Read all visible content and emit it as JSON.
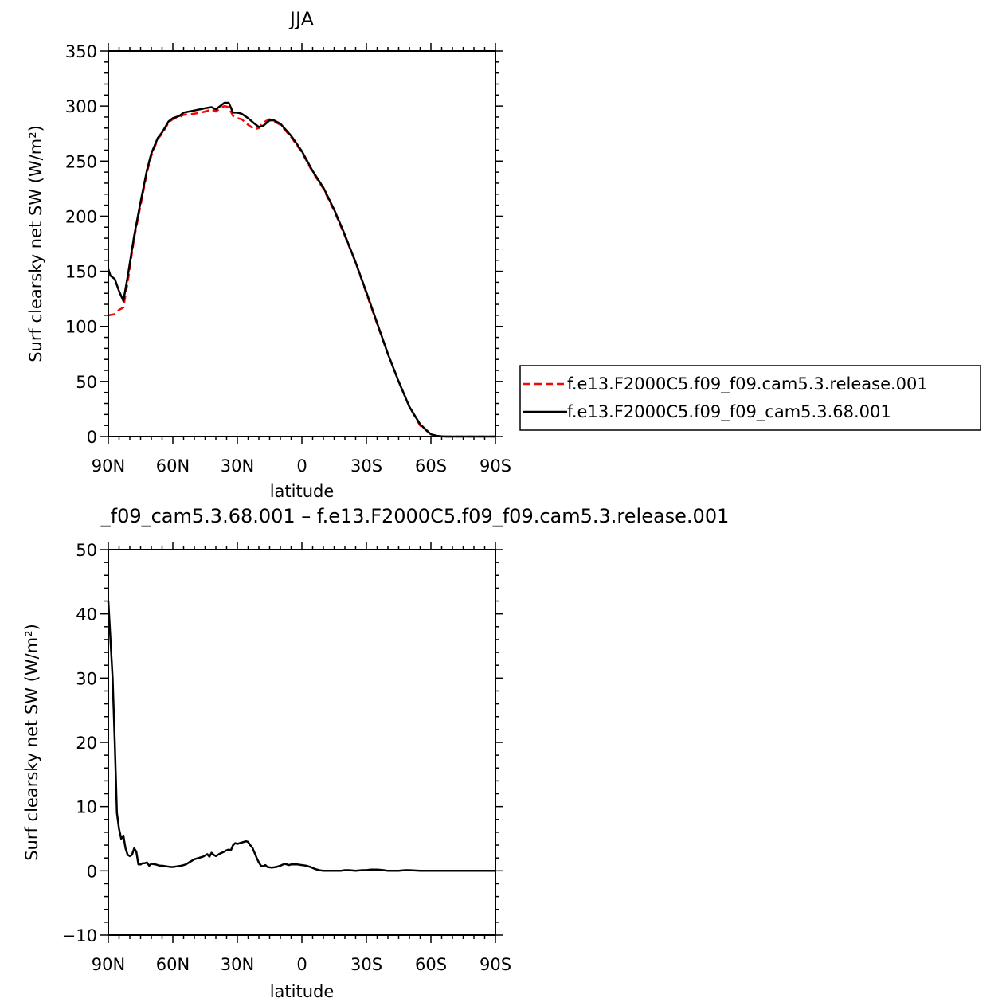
{
  "chart_data": [
    {
      "type": "line",
      "title": "JJA",
      "xlabel": "latitude",
      "ylabel": "Surf clearsky net SW (W/m²)",
      "xlim": [
        90,
        -90
      ],
      "ylim": [
        0,
        350
      ],
      "xticks": [
        {
          "value": 90,
          "label": "90N"
        },
        {
          "value": 60,
          "label": "60N"
        },
        {
          "value": 30,
          "label": "30N"
        },
        {
          "value": 0,
          "label": "0"
        },
        {
          "value": -30,
          "label": "30S"
        },
        {
          "value": -60,
          "label": "60S"
        },
        {
          "value": -90,
          "label": "90S"
        }
      ],
      "yticks": [
        0,
        50,
        100,
        150,
        200,
        250,
        300,
        350
      ],
      "legend_position": "right",
      "series": [
        {
          "name": "f.e13.F2000C5.f09_f09.cam5.3.release.001",
          "color": "#ff0000",
          "dash": "dashed",
          "x": [
            90,
            87,
            85,
            83,
            81,
            78,
            75,
            72,
            70,
            67,
            65,
            62,
            60,
            57,
            55,
            50,
            45,
            42,
            40,
            38,
            36,
            34,
            32,
            30,
            28,
            25,
            22,
            20,
            18,
            15,
            13,
            10,
            5,
            0,
            -5,
            -10,
            -15,
            -20,
            -25,
            -30,
            -35,
            -40,
            -45,
            -50,
            -55,
            -60,
            -62,
            -63,
            -65,
            -67,
            -70,
            -75,
            -80,
            -85,
            -90
          ],
          "y": [
            110,
            111,
            115,
            117,
            140,
            180,
            210,
            240,
            255,
            270,
            275,
            285,
            288,
            290,
            292,
            293,
            295,
            297,
            295,
            298,
            300,
            299,
            291,
            289,
            288,
            283,
            279,
            280,
            285,
            288,
            286,
            283,
            272,
            258,
            240,
            225,
            205,
            182,
            158,
            130,
            102,
            75,
            50,
            27,
            10,
            2,
            1,
            0.5,
            0.2,
            0,
            0,
            0,
            0,
            0,
            0
          ]
        },
        {
          "name": "f.e13.F2000C5.f09_f09_cam5.3.68.001",
          "color": "#000000",
          "dash": "solid",
          "x": [
            90,
            89,
            87,
            85,
            83,
            81,
            78,
            75,
            72,
            70,
            67,
            65,
            62,
            60,
            57,
            55,
            50,
            45,
            42,
            40,
            38,
            36,
            34,
            32,
            30,
            28,
            25,
            22,
            20,
            18,
            15,
            13,
            10,
            5,
            0,
            -5,
            -10,
            -15,
            -20,
            -25,
            -30,
            -35,
            -40,
            -45,
            -50,
            -55,
            -60,
            -62,
            -63,
            -65,
            -67,
            -70,
            -75,
            -80,
            -85,
            -90
          ],
          "y": [
            152,
            146,
            143,
            132,
            123,
            145,
            182,
            213,
            242,
            257,
            271,
            276,
            286,
            289,
            291,
            294,
            296,
            298,
            299,
            297,
            300,
            303,
            303,
            294,
            294,
            293,
            289,
            284,
            281,
            282,
            287,
            287,
            284,
            273,
            259,
            241,
            226,
            206,
            183,
            158,
            131,
            103,
            75,
            50,
            27,
            11,
            2,
            1,
            0.5,
            0.2,
            0,
            0,
            0,
            0,
            0,
            0
          ]
        }
      ]
    },
    {
      "type": "line",
      "title": "_f09_cam5.3.68.001 – f.e13.F2000C5.f09_f09.cam5.3.release.001",
      "xlabel": "latitude",
      "ylabel": "Surf clearsky net SW (W/m²)",
      "xlim": [
        90,
        -90
      ],
      "ylim": [
        -10,
        50
      ],
      "xticks": [
        {
          "value": 90,
          "label": "90N"
        },
        {
          "value": 60,
          "label": "60N"
        },
        {
          "value": 30,
          "label": "30N"
        },
        {
          "value": 0,
          "label": "0"
        },
        {
          "value": -30,
          "label": "30S"
        },
        {
          "value": -60,
          "label": "60S"
        },
        {
          "value": -90,
          "label": "90S"
        }
      ],
      "yticks": [
        -10,
        0,
        10,
        20,
        30,
        40,
        50
      ],
      "series": [
        {
          "color": "#000000",
          "dash": "solid",
          "x": [
            90,
            89,
            88,
            87,
            86,
            85,
            84,
            83,
            82,
            81,
            80,
            79,
            78,
            77,
            76,
            75,
            74,
            73,
            72,
            71,
            70,
            68,
            66,
            65,
            63,
            61,
            60,
            58,
            56,
            54,
            52,
            50,
            48,
            46,
            44,
            43,
            42,
            41,
            40,
            39,
            38,
            36,
            35,
            34,
            33,
            32,
            31,
            30,
            28,
            26,
            25,
            24,
            23,
            22,
            21,
            20,
            19,
            18,
            17,
            16,
            14,
            12,
            10,
            8,
            6,
            5,
            4,
            2,
            0,
            -2,
            -4,
            -6,
            -8,
            -10,
            -12,
            -15,
            -18,
            -20,
            -22,
            -25,
            -28,
            -30,
            -32,
            -35,
            -38,
            -40,
            -42,
            -45,
            -48,
            -50,
            -55,
            -60,
            -62,
            -65,
            -70,
            -75,
            -80,
            -90
          ],
          "y": [
            42,
            36,
            30,
            20,
            9,
            6.5,
            5,
            5.5,
            3.5,
            2.5,
            2.3,
            2.5,
            3.5,
            3,
            1,
            1,
            1.2,
            1.2,
            1.3,
            0.8,
            1.1,
            1,
            0.8,
            0.8,
            0.7,
            0.6,
            0.6,
            0.7,
            0.8,
            1,
            1.4,
            1.8,
            2,
            2.2,
            2.6,
            2.2,
            2.8,
            2.5,
            2.3,
            2.5,
            2.7,
            3,
            3.2,
            3.3,
            3.2,
            4,
            4.3,
            4.2,
            4.4,
            4.6,
            4.5,
            4,
            3.6,
            2.8,
            2,
            1.3,
            0.8,
            0.7,
            0.9,
            0.6,
            0.5,
            0.6,
            0.8,
            1.1,
            0.9,
            1,
            1,
            1,
            0.9,
            0.8,
            0.6,
            0.3,
            0.1,
            0,
            0,
            0,
            0,
            0.1,
            0.1,
            0,
            0.1,
            0.1,
            0.2,
            0.2,
            0.1,
            0,
            0,
            0,
            0.1,
            0.1,
            0,
            0,
            0,
            0,
            0,
            0,
            0,
            0
          ]
        }
      ]
    }
  ]
}
